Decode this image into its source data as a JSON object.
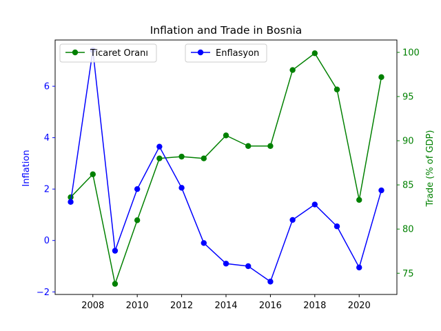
{
  "chart_data": {
    "type": "line",
    "title": "Inflation and Trade in Bosnia",
    "x": [
      2007,
      2008,
      2009,
      2010,
      2011,
      2012,
      2013,
      2014,
      2015,
      2016,
      2017,
      2018,
      2019,
      2020,
      2021
    ],
    "xlim": [
      2006.3,
      2021.7
    ],
    "x_ticks": [
      2008,
      2010,
      2012,
      2014,
      2016,
      2018,
      2020
    ],
    "grid": false,
    "left_axis": {
      "label": "Inflation",
      "color": "#0000ff",
      "ylim": [
        -2.1,
        7.8
      ],
      "ticks": [
        -2,
        0,
        2,
        4,
        6
      ]
    },
    "right_axis": {
      "label": "Trade (% of GDP)",
      "color": "#008000",
      "ylim": [
        72.6,
        101.4
      ],
      "ticks": [
        75,
        80,
        85,
        90,
        95,
        100
      ]
    },
    "series": [
      {
        "name": "Ticaret Oranı",
        "axis": "right",
        "color": "#008000",
        "values": [
          83.6,
          86.2,
          73.8,
          81.0,
          88.0,
          88.2,
          88.0,
          90.6,
          89.4,
          89.4,
          98.0,
          99.9,
          95.8,
          83.3,
          97.2
        ]
      },
      {
        "name": "Enflasyon",
        "axis": "left",
        "color": "#0000ff",
        "values": [
          1.5,
          7.4,
          -0.4,
          2.0,
          3.65,
          2.05,
          -0.1,
          -0.9,
          -1.0,
          -1.6,
          0.8,
          1.4,
          0.55,
          -1.05,
          1.95
        ]
      }
    ],
    "legends": [
      {
        "placement": "upper-left",
        "series_index": 0
      },
      {
        "placement": "upper-center",
        "series_index": 1
      }
    ]
  }
}
